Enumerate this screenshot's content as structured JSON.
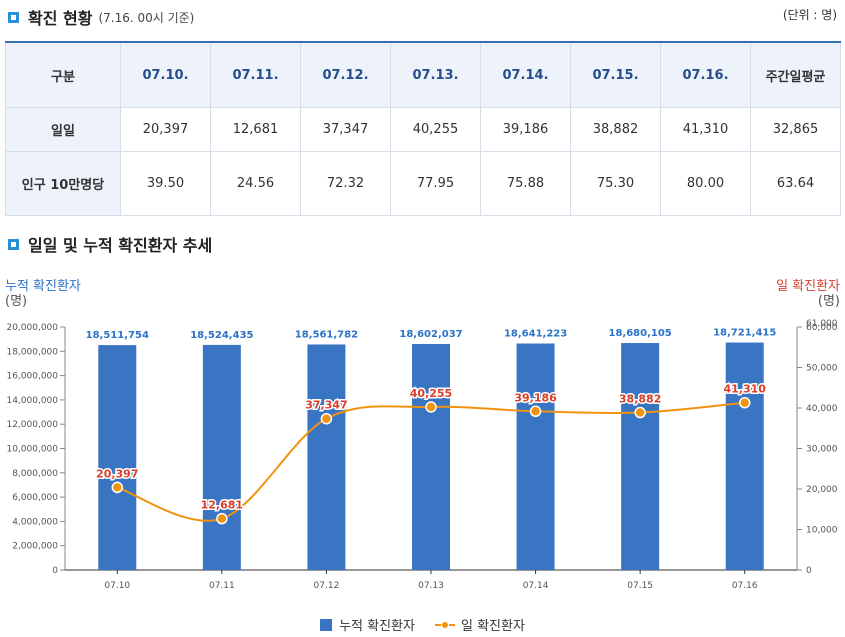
{
  "section1": {
    "title": "확진 현황",
    "subtitle": "(7.16. 00시 기준)",
    "unit": "(단위 : 명)"
  },
  "table": {
    "corner": "구분",
    "columns": [
      "07.10.",
      "07.11.",
      "07.12.",
      "07.13.",
      "07.14.",
      "07.15.",
      "07.16.",
      "주간일평균"
    ],
    "rows": [
      {
        "label": "일일",
        "values": [
          "20,397",
          "12,681",
          "37,347",
          "40,255",
          "39,186",
          "38,882",
          "41,310",
          "32,865"
        ]
      },
      {
        "label": "인구 10만명당",
        "values": [
          "39.50",
          "24.56",
          "72.32",
          "77.95",
          "75.88",
          "75.30",
          "80.00",
          "63.64"
        ]
      }
    ]
  },
  "section2": {
    "title": "일일 및 누적 확진환자 추세"
  },
  "chart_data": {
    "type": "bar+line",
    "categories": [
      "07.10",
      "07.11",
      "07.12",
      "07.13",
      "07.14",
      "07.15",
      "07.16"
    ],
    "series": [
      {
        "name": "누적 확진환자",
        "type": "bar",
        "axis": "left",
        "color": "#3a75c4",
        "values": [
          18511754,
          18524435,
          18561782,
          18602037,
          18641223,
          18680105,
          18721415
        ],
        "labels": [
          "18,511,754",
          "18,524,435",
          "18,561,782",
          "18,602,037",
          "18,641,223",
          "18,680,105",
          "18,721,415"
        ]
      },
      {
        "name": "일 확진환자",
        "type": "line",
        "axis": "right",
        "color": "#f0930f",
        "values": [
          20397,
          12681,
          37347,
          40255,
          39186,
          38882,
          41310
        ],
        "labels": [
          "20,397",
          "12,681",
          "37,347",
          "40,255",
          "39,186",
          "38,882",
          "41,310"
        ]
      }
    ],
    "left_axis": {
      "title_line1": "누적 확진환자",
      "title_line2": "(명)",
      "color": "#2a73c7",
      "ylim": [
        0,
        20000000
      ],
      "ticks": [
        "0",
        "2,000,000",
        "4,000,000",
        "6,000,000",
        "8,000,000",
        "10,000,000",
        "12,000,000",
        "14,000,000",
        "16,000,000",
        "18,000,000",
        "20,000,000"
      ]
    },
    "right_axis": {
      "title_line1": "일 확진환자",
      "title_line2": "(명)",
      "color": "#d9402b",
      "ylim": [
        0,
        60000
      ],
      "ticks": [
        "0",
        "10,000",
        "20,000",
        "30,000",
        "40,000",
        "50,000",
        "60,000"
      ],
      "overlap_tick": "61,000"
    },
    "legend_position": "bottom-center"
  },
  "legend": {
    "bar": "누적 확진환자",
    "line": "일 확진환자"
  }
}
